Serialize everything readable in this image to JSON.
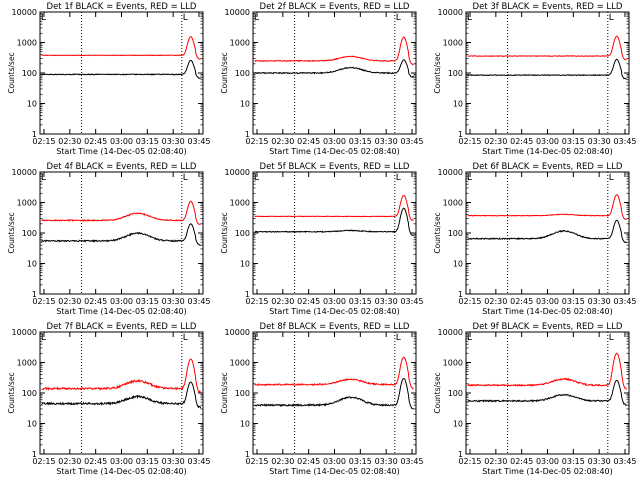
{
  "chart_data": [
    {
      "type": "line",
      "title": "Det 1f BLACK = Events, RED = LLD",
      "ylabel": "Counts/sec",
      "xlabel": "Start Time (14-Dec-05 02:08:40)",
      "x_ticks": [
        "02:15",
        "02:30",
        "02:45",
        "03:00",
        "03:15",
        "03:30",
        "03:45"
      ],
      "y_ticks": [
        "1",
        "10",
        "100",
        "1000",
        "10000"
      ],
      "ylim": [
        1,
        10000
      ],
      "yscale": "log",
      "marker_top": "L",
      "series": [
        {
          "color": "#000000",
          "base": 90,
          "bump": 1.0,
          "peak": 260,
          "noise": 0.03
        },
        {
          "color": "#ff0000",
          "base": 380,
          "bump": 1.0,
          "peak": 1550,
          "noise": 0.02
        }
      ]
    },
    {
      "type": "line",
      "title": "Det 2f BLACK = Events, RED = LLD",
      "ylabel": "Counts/sec",
      "xlabel": "Start Time (14-Dec-05 02:08:40)",
      "x_ticks": [
        "02:15",
        "02:30",
        "02:45",
        "03:00",
        "03:15",
        "03:30",
        "03:45"
      ],
      "y_ticks": [
        "1",
        "10",
        "100",
        "1000",
        "10000"
      ],
      "ylim": [
        1,
        10000
      ],
      "yscale": "log",
      "marker_top": "L",
      "series": [
        {
          "color": "#000000",
          "base": 100,
          "bump": 1.5,
          "peak": 270,
          "noise": 0.04
        },
        {
          "color": "#ff0000",
          "base": 250,
          "bump": 1.4,
          "peak": 1500,
          "noise": 0.03
        }
      ]
    },
    {
      "type": "line",
      "title": "Det 3f BLACK = Events, RED = LLD",
      "ylabel": "Counts/sec",
      "xlabel": "Start Time (14-Dec-05 02:08:40)",
      "x_ticks": [
        "02:15",
        "02:30",
        "02:45",
        "03:00",
        "03:15",
        "03:30",
        "03:45"
      ],
      "y_ticks": [
        "1",
        "10",
        "100",
        "1000",
        "10000"
      ],
      "ylim": [
        1,
        10000
      ],
      "yscale": "log",
      "marker_top": "L",
      "series": [
        {
          "color": "#000000",
          "base": 85,
          "bump": 1.0,
          "peak": 280,
          "noise": 0.03
        },
        {
          "color": "#ff0000",
          "base": 360,
          "bump": 1.0,
          "peak": 1600,
          "noise": 0.02
        }
      ]
    },
    {
      "type": "line",
      "title": "Det 4f BLACK = Events, RED = LLD",
      "ylabel": "Counts/sec",
      "xlabel": "Start Time (14-Dec-05 02:08:40)",
      "x_ticks": [
        "02:15",
        "02:30",
        "02:45",
        "03:00",
        "03:15",
        "03:30",
        "03:45"
      ],
      "y_ticks": [
        "1",
        "10",
        "100",
        "1000",
        "10000"
      ],
      "ylim": [
        1,
        10000
      ],
      "yscale": "log",
      "marker_top": "L",
      "series": [
        {
          "color": "#000000",
          "base": 55,
          "bump": 1.8,
          "peak": 200,
          "noise": 0.05
        },
        {
          "color": "#ff0000",
          "base": 260,
          "bump": 1.7,
          "peak": 1100,
          "noise": 0.04
        }
      ]
    },
    {
      "type": "line",
      "title": "Det 5f BLACK = Events, RED = LLD",
      "ylabel": "Counts/sec",
      "xlabel": "Start Time (14-Dec-05 02:08:40)",
      "x_ticks": [
        "02:15",
        "02:30",
        "02:45",
        "03:00",
        "03:15",
        "03:30",
        "03:45"
      ],
      "y_ticks": [
        "1",
        "10",
        "100",
        "1000",
        "10000"
      ],
      "ylim": [
        1,
        10000
      ],
      "yscale": "log",
      "marker_top": "L",
      "series": [
        {
          "color": "#000000",
          "base": 110,
          "bump": 1.1,
          "peak": 650,
          "noise": 0.03
        },
        {
          "color": "#ff0000",
          "base": 350,
          "bump": 1.0,
          "peak": 1700,
          "noise": 0.02
        }
      ]
    },
    {
      "type": "line",
      "title": "Det 6f BLACK = Events, RED = LLD",
      "ylabel": "Counts/sec",
      "xlabel": "Start Time (14-Dec-05 02:08:40)",
      "x_ticks": [
        "02:15",
        "02:30",
        "02:45",
        "03:00",
        "03:15",
        "03:30",
        "03:45"
      ],
      "y_ticks": [
        "1",
        "10",
        "100",
        "1000",
        "10000"
      ],
      "ylim": [
        1,
        10000
      ],
      "yscale": "log",
      "marker_top": "L",
      "series": [
        {
          "color": "#000000",
          "base": 65,
          "bump": 1.8,
          "peak": 260,
          "noise": 0.04
        },
        {
          "color": "#ff0000",
          "base": 370,
          "bump": 1.1,
          "peak": 1800,
          "noise": 0.02
        }
      ]
    },
    {
      "type": "line",
      "title": "Det 7f BLACK = Events, RED = LLD",
      "ylabel": "Counts/sec",
      "xlabel": "Start Time (14-Dec-05 02:08:40)",
      "x_ticks": [
        "02:15",
        "02:30",
        "02:45",
        "03:00",
        "03:15",
        "03:30",
        "03:45"
      ],
      "y_ticks": [
        "1",
        "10",
        "100",
        "1000",
        "10000"
      ],
      "ylim": [
        1,
        10000
      ],
      "yscale": "log",
      "marker_top": "L",
      "series": [
        {
          "color": "#000000",
          "base": 45,
          "bump": 1.7,
          "peak": 230,
          "noise": 0.07
        },
        {
          "color": "#ff0000",
          "base": 140,
          "bump": 1.8,
          "peak": 1300,
          "noise": 0.07
        }
      ]
    },
    {
      "type": "line",
      "title": "Det 8f BLACK = Events, RED = LLD",
      "ylabel": "Counts/sec",
      "xlabel": "Start Time (14-Dec-05 02:08:40)",
      "x_ticks": [
        "02:15",
        "02:30",
        "02:45",
        "03:00",
        "03:15",
        "03:30",
        "03:45"
      ],
      "y_ticks": [
        "1",
        "10",
        "100",
        "1000",
        "10000"
      ],
      "ylim": [
        1,
        10000
      ],
      "yscale": "log",
      "marker_top": "L",
      "series": [
        {
          "color": "#000000",
          "base": 40,
          "bump": 1.8,
          "peak": 300,
          "noise": 0.06
        },
        {
          "color": "#ff0000",
          "base": 190,
          "bump": 1.5,
          "peak": 1500,
          "noise": 0.05
        }
      ]
    },
    {
      "type": "line",
      "title": "Det 9f BLACK = Events, RED = LLD",
      "ylabel": "Counts/sec",
      "xlabel": "Start Time (14-Dec-05 02:08:40)",
      "x_ticks": [
        "02:15",
        "02:30",
        "02:45",
        "03:00",
        "03:15",
        "03:30",
        "03:45"
      ],
      "y_ticks": [
        "1",
        "10",
        "100",
        "1000",
        "10000"
      ],
      "ylim": [
        1,
        10000
      ],
      "yscale": "log",
      "marker_top": "L",
      "series": [
        {
          "color": "#000000",
          "base": 55,
          "bump": 1.6,
          "peak": 260,
          "noise": 0.05
        },
        {
          "color": "#ff0000",
          "base": 180,
          "bump": 1.6,
          "peak": 2000,
          "noise": 0.05
        }
      ]
    }
  ]
}
